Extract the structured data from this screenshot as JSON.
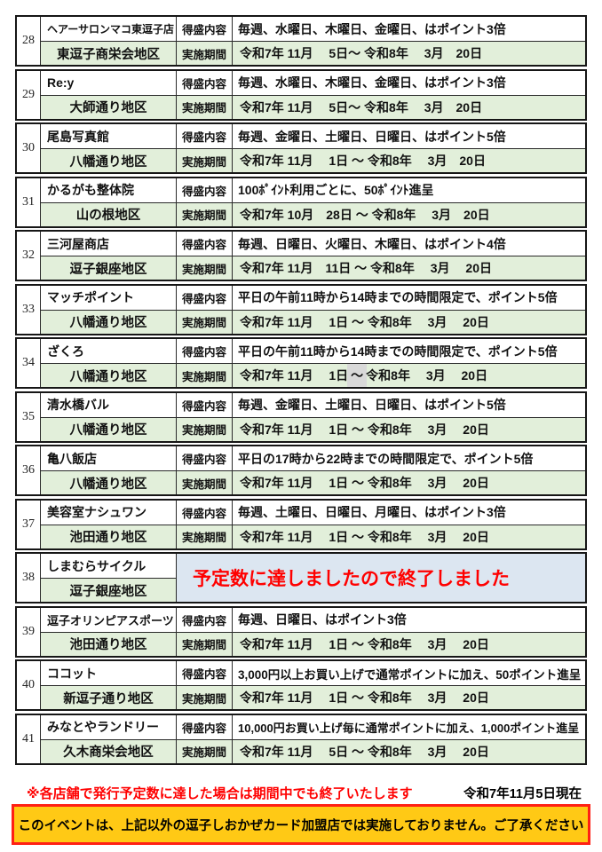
{
  "table": {
    "label_content": "得盛内容",
    "label_period": "実施期間",
    "entries": [
      {
        "no": "28",
        "shop": "ヘアーサロンマコ東逗子店",
        "district": "東逗子商栄会地区",
        "content": "毎週、水曜日、木曜日、金曜日、はポイント3倍",
        "period": "令和7年 11月　 5日～ 令和8年　 3月　20日",
        "closed": false
      },
      {
        "no": "29",
        "shop": "Re:y",
        "district": "大師通り地区",
        "content": "毎週、水曜日、木曜日、金曜日、はポイント3倍",
        "period": "令和7年 11月　 5日～ 令和8年　 3月　20日",
        "closed": false
      },
      {
        "no": "30",
        "shop": "尾島写真館",
        "district": "八幡通り地区",
        "content": "毎週、金曜日、土曜日、日曜日、はポイント5倍",
        "period": "令和7年 11月　 1日 ～ 令和8年　 3月　20日",
        "closed": false
      },
      {
        "no": "31",
        "shop": "かるがも整体院",
        "district": "山の根地区",
        "content": "100ﾎﾟｲﾝﾄ利用ごとに、50ﾎﾟｲﾝﾄ進呈",
        "period": "令和7年 10月　28日 ～ 令和8年　 3月　20日",
        "closed": false
      },
      {
        "no": "32",
        "shop": "三河屋商店",
        "district": "逗子銀座地区",
        "content": "毎週、日曜日、火曜日、木曜日、はポイント4倍",
        "period": "令和7年 11月　11日 ～ 令和8年　 3月　 20日",
        "closed": false
      },
      {
        "no": "33",
        "shop": "マッチポイント",
        "district": "八幡通り地区",
        "content": "平日の午前11時から14時までの時間限定で、ポイント5倍",
        "period": "令和7年 11月　 1日 ～ 令和8年　 3月　 20日",
        "closed": false
      },
      {
        "no": "34",
        "shop": "ざくろ",
        "district": "八幡通り地区",
        "content": "平日の午前11時から14時までの時間限定で、ポイント5倍",
        "period": "令和7年 11月　 1日 ～ 令和8年　 3月　 20日",
        "closed": false,
        "highlight_tilde": true
      },
      {
        "no": "35",
        "shop": "清水橋バル",
        "district": "八幡通り地区",
        "content": "毎週、金曜日、土曜日、日曜日、はポイント5倍",
        "period": "令和7年 11月　 1日 ～ 令和8年　 3月　 20日",
        "closed": false
      },
      {
        "no": "36",
        "shop": "亀八飯店",
        "district": "八幡通り地区",
        "content": "平日の17時から22時までの時間限定で、ポイント5倍",
        "period": "令和7年 11月　 1日 ～ 令和8年　 3月　 20日",
        "closed": false
      },
      {
        "no": "37",
        "shop": "美容室ナシュワン",
        "district": "池田通り地区",
        "content": "毎週、土曜日、日曜日、月曜日、はポイント3倍",
        "period": "令和7年 11月　 1日 ～ 令和8年　 3月　 20日",
        "closed": false
      },
      {
        "no": "38",
        "shop": "しまむらサイクル",
        "district": "逗子銀座地区",
        "closed": true,
        "closed_text": "予定数に達しましたので終了しました"
      },
      {
        "no": "39",
        "shop": "逗子オリンピアスポーツ",
        "district": "池田通り地区",
        "content": "毎週、日曜日、はポイント3倍",
        "period": "令和7年 11月　 1日 ～ 令和8年　 3月　 20日",
        "closed": false
      },
      {
        "no": "40",
        "shop": "ココット",
        "district": "新逗子通り地区",
        "content": "3,000円以上お買い上げで通常ポイントに加え、50ポイント進呈",
        "period": "令和7年 11月　 1日 ～ 令和8年　 3月　 20日",
        "closed": false
      },
      {
        "no": "41",
        "shop": "みなとやランドリー",
        "district": "久木商栄会地区",
        "content": "10,000円お買い上げ毎に通常ポイントに加え、1,000ポイント進呈",
        "period": "令和7年 11月　 5日 ～ 令和8年　 3月　 20日",
        "closed": false
      }
    ]
  },
  "footer": {
    "note": "※各店舗で発行予定数に達した場合は期間中でも終了いたします",
    "date": "令和7年11月5日現在",
    "banner": "このイベントは、上記以外の逗子しおかぜカード加盟店では実施しておりません。ご了承ください"
  },
  "colors": {
    "green_cell": "#e2efda",
    "blue_cell": "#dce6f1",
    "alert_red": "#ff0000",
    "banner_yellow": "#ffc915",
    "banner_border": "#ff2014",
    "highlight_gray": "#d9d9d9",
    "border_dark": "#161616"
  }
}
